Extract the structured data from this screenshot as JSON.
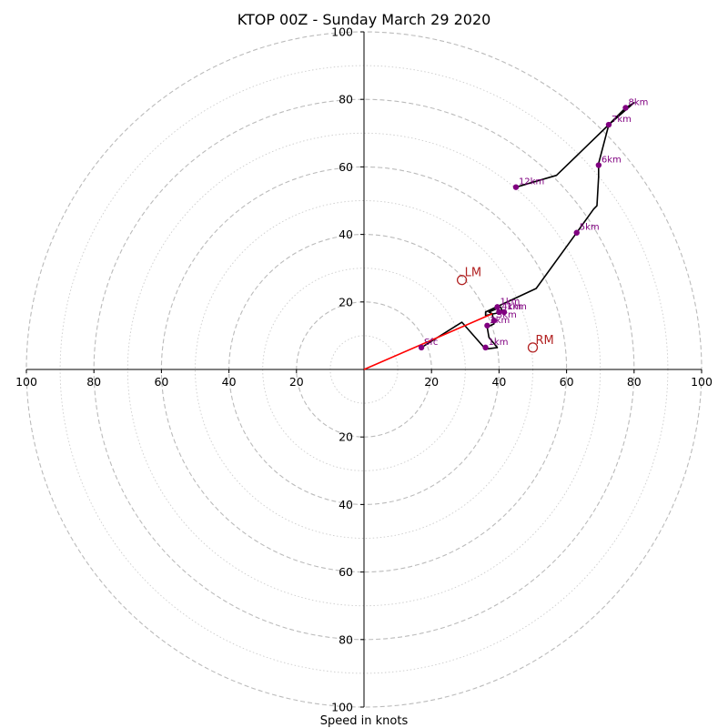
{
  "chart_data": {
    "type": "scatter",
    "subtype": "hodograph",
    "title": "KTOP 00Z - Sunday March 29 2020",
    "xlabel": "Speed in knots",
    "ylabel": "",
    "xlim": [
      -100,
      100
    ],
    "ylim": [
      -100,
      100
    ],
    "rings": [
      10,
      20,
      30,
      40,
      50,
      60,
      70,
      80,
      90,
      100
    ],
    "ring_style": {
      "even": "dashed",
      "odd": "dotted"
    },
    "x_tick_labels": [
      "100",
      "80",
      "60",
      "40",
      "20",
      "20",
      "40",
      "60",
      "80",
      "100"
    ],
    "x_tick_values": [
      -100,
      -80,
      -60,
      -40,
      -20,
      20,
      40,
      60,
      80,
      100
    ],
    "y_tick_labels": [
      "100",
      "80",
      "60",
      "40",
      "20",
      "20",
      "40",
      "60",
      "80",
      "100"
    ],
    "y_tick_values": [
      100,
      80,
      60,
      40,
      20,
      -20,
      -40,
      -60,
      -80,
      -100
    ],
    "trace": {
      "color": "#000000",
      "points": [
        [
          17,
          6.5
        ],
        [
          29,
          14
        ],
        [
          36,
          6
        ],
        [
          39.5,
          6.5
        ],
        [
          37,
          9.5
        ],
        [
          36.5,
          12.5
        ],
        [
          38.5,
          13.5
        ],
        [
          38,
          16.5
        ],
        [
          37,
          17
        ],
        [
          40.5,
          18.5
        ],
        [
          41,
          17
        ],
        [
          36,
          16
        ],
        [
          36,
          17
        ],
        [
          51,
          24
        ],
        [
          63,
          40.5
        ],
        [
          68,
          47.5
        ],
        [
          69,
          48.5
        ],
        [
          69.5,
          57
        ],
        [
          69.5,
          61
        ],
        [
          72.5,
          72.5
        ],
        [
          80,
          79
        ],
        [
          77.5,
          77.5
        ],
        [
          72.5,
          72.5
        ],
        [
          57,
          57.5
        ],
        [
          45,
          54
        ]
      ]
    },
    "height_points": {
      "color": "#800080",
      "items": [
        {
          "label": "Sfc",
          "u": 17,
          "v": 6.5
        },
        {
          "label": "1km",
          "u": 36,
          "v": 6.5
        },
        {
          "label": "2km",
          "u": 36.5,
          "v": 13
        },
        {
          "label": "3km",
          "u": 38.5,
          "v": 14.5
        },
        {
          "label": "4km",
          "u": 40,
          "v": 17
        },
        {
          "label": "5km",
          "u": 63,
          "v": 40.5
        },
        {
          "label": "6km",
          "u": 69.5,
          "v": 60.5
        },
        {
          "label": "7km",
          "u": 72.5,
          "v": 72.5
        },
        {
          "label": "8km",
          "u": 77.5,
          "v": 77.5
        },
        {
          "label": "12km",
          "u": 45,
          "v": 54
        },
        {
          "label": "1km",
          "u": 39.5,
          "v": 18.5
        },
        {
          "label": "1km",
          "u": 41.5,
          "v": 17
        }
      ]
    },
    "storm_motion": [
      {
        "label": "LM",
        "u": 29,
        "v": 26.5
      },
      {
        "label": "RM",
        "u": 50,
        "v": 6.5
      }
    ],
    "mean_wind_line": {
      "color": "#ff0000",
      "from": [
        0,
        0
      ],
      "to": [
        38,
        16.5
      ]
    },
    "colors": {
      "rings": "#bbbbbb",
      "axes": "#000000",
      "storm_motion": "#b22222"
    }
  }
}
